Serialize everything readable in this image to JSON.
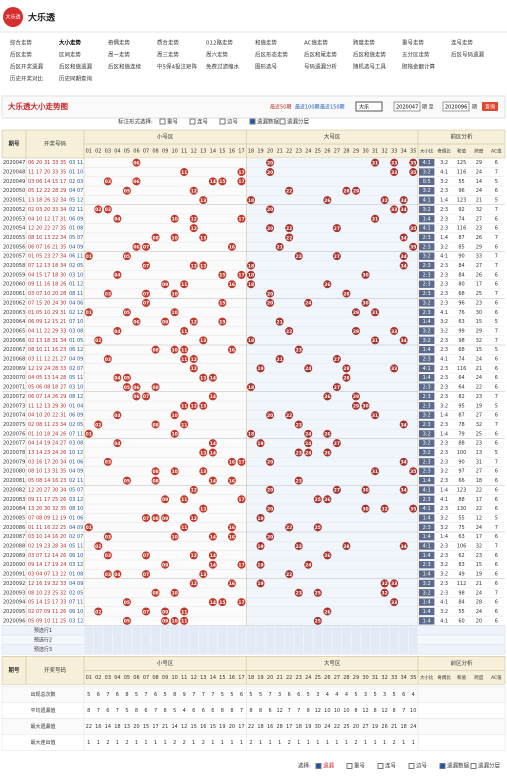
{
  "header": {
    "logo": "大乐透",
    "title": "大乐透"
  },
  "nav": [
    [
      "综合走势",
      "大小走势",
      "奇偶走势",
      "质合走势",
      "012路走势",
      "和值走势",
      "AC值走势",
      "跨度走势",
      "重号走势",
      "连号走势"
    ],
    [
      "后区走势",
      "区间走势",
      "周一走势",
      "周三走势",
      "周六走势",
      "后区形态走势",
      "后区和尾走势",
      "后区和值走势",
      "五分区走势",
      "后区号码遗漏"
    ],
    [
      "后区开奖遗漏",
      "后区和值遗漏",
      "后区和值连续",
      "中5保4投注矩阵",
      "免费过滤缩水",
      "图形选号",
      "号码遗漏分析",
      "随机选号工具",
      "胆拖金额计算"
    ],
    [
      "历史开奖对比",
      "历史同期查询"
    ]
  ],
  "panel": {
    "title": "大乐透大小走势图",
    "quick": [
      "最近50期",
      "最近100期",
      "最近150期"
    ],
    "select": "大乐",
    "from": "2020047",
    "from_unit": "期 至",
    "to": "2020096",
    "to_unit": "期",
    "button": "查询",
    "mark_label": "标注形式选择:",
    "marks": [
      "重号",
      "连号",
      "边号",
      "遗漏数据",
      "遗漏分层"
    ]
  },
  "table": {
    "headers": {
      "issue": "期号",
      "draw": "开奖号码",
      "zones": [
        "小号区",
        "大号区"
      ],
      "numbers": [
        "01",
        "02",
        "03",
        "04",
        "05",
        "06",
        "07",
        "08",
        "09",
        "10",
        "11",
        "12",
        "13",
        "14",
        "15",
        "16",
        "17",
        "18",
        "19",
        "20",
        "21",
        "22",
        "23",
        "24",
        "25",
        "26",
        "27",
        "28",
        "29",
        "30",
        "31",
        "32",
        "33",
        "34",
        "35"
      ],
      "analysis": "前区分析",
      "analysis_cols": [
        "大小比",
        "奇偶比",
        "和值",
        "跨度",
        "AC值"
      ]
    },
    "rows": [
      {
        "issue": "2020047",
        "front": [
          "06",
          "20",
          "31",
          "33",
          "35"
        ],
        "back": [
          "03",
          "11"
        ],
        "stats": [
          "4:1",
          "3:2",
          125,
          29,
          6
        ]
      },
      {
        "issue": "2020048",
        "front": [
          "11",
          "17",
          "20",
          "33",
          "35"
        ],
        "back": [
          "01",
          "10"
        ],
        "stats": [
          "3:2",
          "4:1",
          116,
          24,
          7
        ]
      },
      {
        "issue": "2020049",
        "front": [
          "03",
          "06",
          "14",
          "15",
          "17"
        ],
        "back": [
          "02",
          "03"
        ],
        "stats": [
          "0:5",
          "3:2",
          55,
          14,
          5
        ]
      },
      {
        "issue": "2020050",
        "front": [
          "05",
          "12",
          "22",
          "28",
          "29"
        ],
        "back": [
          "04",
          "07"
        ],
        "stats": [
          "3:2",
          "2:3",
          96,
          24,
          6
        ]
      },
      {
        "issue": "2020051",
        "front": [
          "13",
          "18",
          "26",
          "32",
          "34"
        ],
        "back": [
          "05",
          "12"
        ],
        "stats": [
          "4:1",
          "1:4",
          123,
          21,
          5
        ]
      },
      {
        "issue": "2020052",
        "front": [
          "02",
          "03",
          "20",
          "33",
          "34"
        ],
        "back": [
          "02",
          "11"
        ],
        "stats": [
          "3:2",
          "2:3",
          92,
          32,
          7
        ]
      },
      {
        "issue": "2020053",
        "front": [
          "04",
          "10",
          "12",
          "17",
          "31"
        ],
        "back": [
          "06",
          "09"
        ],
        "stats": [
          "1:4",
          "2:3",
          74,
          27,
          6
        ]
      },
      {
        "issue": "2020054",
        "front": [
          "12",
          "20",
          "22",
          "27",
          "35"
        ],
        "back": [
          "01",
          "08"
        ],
        "stats": [
          "4:1",
          "2:3",
          116,
          23,
          6
        ]
      },
      {
        "issue": "2020055",
        "front": [
          "08",
          "10",
          "13",
          "22",
          "34"
        ],
        "back": [
          "05",
          "07"
        ],
        "stats": [
          "2:3",
          "1:4",
          87,
          26,
          7
        ]
      },
      {
        "issue": "2020056",
        "front": [
          "06",
          "07",
          "16",
          "21",
          "35"
        ],
        "back": [
          "04",
          "09"
        ],
        "stats": [
          "2:3",
          "3:2",
          85,
          29,
          6
        ]
      },
      {
        "issue": "2020057",
        "front": [
          "01",
          "05",
          "23",
          "27",
          "34"
        ],
        "back": [
          "06",
          "11"
        ],
        "stats": [
          "3:2",
          "4:1",
          90,
          33,
          7
        ]
      },
      {
        "issue": "2020058",
        "front": [
          "07",
          "12",
          "13",
          "18",
          "34"
        ],
        "back": [
          "02",
          "05"
        ],
        "stats": [
          "2:3",
          "2:3",
          84,
          27,
          7
        ]
      },
      {
        "issue": "2020059",
        "front": [
          "04",
          "15",
          "17",
          "18",
          "30"
        ],
        "back": [
          "03",
          "10"
        ],
        "stats": [
          "2:3",
          "2:3",
          84,
          26,
          6
        ]
      },
      {
        "issue": "2020060",
        "front": [
          "09",
          "11",
          "16",
          "18",
          "26"
        ],
        "back": [
          "01",
          "12"
        ],
        "stats": [
          "2:3",
          "2:3",
          80,
          17,
          6
        ]
      },
      {
        "issue": "2020061",
        "front": [
          "03",
          "07",
          "10",
          "20",
          "28"
        ],
        "back": [
          "08",
          "11"
        ],
        "stats": [
          "2:3",
          "2:3",
          68,
          25,
          7
        ]
      },
      {
        "issue": "2020062",
        "front": [
          "07",
          "15",
          "20",
          "24",
          "30"
        ],
        "back": [
          "04",
          "06"
        ],
        "stats": [
          "3:2",
          "2:3",
          96,
          23,
          6
        ]
      },
      {
        "issue": "2020063",
        "front": [
          "01",
          "05",
          "10",
          "29",
          "31"
        ],
        "back": [
          "02",
          "12"
        ],
        "stats": [
          "2:3",
          "4:1",
          76,
          30,
          6
        ]
      },
      {
        "issue": "2020064",
        "front": [
          "06",
          "09",
          "12",
          "15",
          "21"
        ],
        "back": [
          "07",
          "10"
        ],
        "stats": [
          "1:4",
          "3:2",
          63,
          15,
          5
        ]
      },
      {
        "issue": "2020065",
        "front": [
          "04",
          "11",
          "22",
          "29",
          "33"
        ],
        "back": [
          "03",
          "08"
        ],
        "stats": [
          "3:2",
          "3:2",
          99,
          29,
          7
        ]
      },
      {
        "issue": "2020066",
        "front": [
          "02",
          "13",
          "18",
          "31",
          "34"
        ],
        "back": [
          "01",
          "05"
        ],
        "stats": [
          "3:2",
          "2:3",
          98,
          32,
          7
        ]
      },
      {
        "issue": "2020067",
        "front": [
          "08",
          "10",
          "11",
          "16",
          "23"
        ],
        "back": [
          "06",
          "12"
        ],
        "stats": [
          "1:4",
          "2:3",
          68,
          15,
          5
        ]
      },
      {
        "issue": "2020068",
        "front": [
          "03",
          "11",
          "12",
          "21",
          "27"
        ],
        "back": [
          "04",
          "09"
        ],
        "stats": [
          "2:3",
          "4:1",
          74,
          24,
          6
        ]
      },
      {
        "issue": "2020069",
        "front": [
          "12",
          "19",
          "24",
          "28",
          "33"
        ],
        "back": [
          "02",
          "07"
        ],
        "stats": [
          "4:1",
          "2:3",
          116,
          21,
          6
        ]
      },
      {
        "issue": "2020070",
        "front": [
          "04",
          "05",
          "13",
          "14",
          "28"
        ],
        "back": [
          "05",
          "11"
        ],
        "stats": [
          "1:4",
          "2:3",
          64,
          24,
          6
        ]
      },
      {
        "issue": "2020071",
        "front": [
          "05",
          "06",
          "08",
          "18",
          "27"
        ],
        "back": [
          "03",
          "10"
        ],
        "stats": [
          "2:3",
          "2:3",
          64,
          22,
          6
        ]
      },
      {
        "issue": "2020072",
        "front": [
          "06",
          "07",
          "14",
          "26",
          "29"
        ],
        "back": [
          "08",
          "12"
        ],
        "stats": [
          "2:3",
          "2:3",
          82,
          23,
          7
        ]
      },
      {
        "issue": "2020073",
        "front": [
          "11",
          "12",
          "13",
          "29",
          "30"
        ],
        "back": [
          "01",
          "04"
        ],
        "stats": [
          "2:3",
          "3:2",
          95,
          19,
          5
        ]
      },
      {
        "issue": "2020074",
        "front": [
          "04",
          "10",
          "20",
          "22",
          "31"
        ],
        "back": [
          "06",
          "09"
        ],
        "stats": [
          "3:2",
          "1:4",
          87,
          27,
          6
        ]
      },
      {
        "issue": "2020075",
        "front": [
          "02",
          "08",
          "11",
          "23",
          "34"
        ],
        "back": [
          "02",
          "05"
        ],
        "stats": [
          "2:3",
          "2:3",
          78,
          32,
          7
        ]
      },
      {
        "issue": "2020076",
        "front": [
          "01",
          "10",
          "18",
          "24",
          "26"
        ],
        "back": [
          "07",
          "11"
        ],
        "stats": [
          "3:2",
          "1:4",
          79,
          25,
          6
        ]
      },
      {
        "issue": "2020077",
        "front": [
          "04",
          "14",
          "19",
          "24",
          "27"
        ],
        "back": [
          "03",
          "08"
        ],
        "stats": [
          "3:2",
          "2:3",
          88,
          23,
          6
        ]
      },
      {
        "issue": "2020078",
        "front": [
          "13",
          "14",
          "23",
          "24",
          "26"
        ],
        "back": [
          "10",
          "12"
        ],
        "stats": [
          "3:2",
          "2:3",
          100,
          13,
          5
        ]
      },
      {
        "issue": "2020079",
        "front": [
          "03",
          "16",
          "17",
          "20",
          "34"
        ],
        "back": [
          "01",
          "06"
        ],
        "stats": [
          "2:3",
          "2:3",
          90,
          31,
          7
        ]
      },
      {
        "issue": "2020080",
        "front": [
          "08",
          "10",
          "13",
          "31",
          "35"
        ],
        "back": [
          "04",
          "09"
        ],
        "stats": [
          "2:3",
          "3:2",
          97,
          27,
          6
        ]
      },
      {
        "issue": "2020081",
        "front": [
          "05",
          "08",
          "14",
          "16",
          "23"
        ],
        "back": [
          "02",
          "11"
        ],
        "stats": [
          "1:4",
          "2:3",
          66,
          18,
          6
        ]
      },
      {
        "issue": "2020082",
        "front": [
          "12",
          "20",
          "27",
          "30",
          "34"
        ],
        "back": [
          "05",
          "07"
        ],
        "stats": [
          "4:1",
          "1:4",
          123,
          22,
          6
        ]
      },
      {
        "issue": "2020083",
        "front": [
          "09",
          "11",
          "17",
          "25",
          "26"
        ],
        "back": [
          "03",
          "12"
        ],
        "stats": [
          "2:3",
          "4:1",
          88,
          17,
          6
        ]
      },
      {
        "issue": "2020084",
        "front": [
          "13",
          "20",
          "30",
          "32",
          "35"
        ],
        "back": [
          "08",
          "10"
        ],
        "stats": [
          "4:1",
          "2:3",
          130,
          22,
          6
        ]
      },
      {
        "issue": "2020085",
        "front": [
          "07",
          "08",
          "09",
          "12",
          "19"
        ],
        "back": [
          "01",
          "06"
        ],
        "stats": [
          "1:4",
          "3:2",
          55,
          12,
          5
        ]
      },
      {
        "issue": "2020086",
        "front": [
          "01",
          "11",
          "16",
          "22",
          "25"
        ],
        "back": [
          "04",
          "09"
        ],
        "stats": [
          "2:3",
          "3:2",
          75,
          24,
          7
        ]
      },
      {
        "issue": "2020087",
        "front": [
          "03",
          "10",
          "14",
          "16",
          "20"
        ],
        "back": [
          "02",
          "07"
        ],
        "stats": [
          "1:4",
          "1:4",
          63,
          17,
          6
        ]
      },
      {
        "issue": "2020088",
        "front": [
          "02",
          "19",
          "23",
          "28",
          "34"
        ],
        "back": [
          "05",
          "11"
        ],
        "stats": [
          "4:1",
          "2:3",
          106,
          32,
          7
        ]
      },
      {
        "issue": "2020089",
        "front": [
          "03",
          "07",
          "12",
          "14",
          "26"
        ],
        "back": [
          "06",
          "10"
        ],
        "stats": [
          "1:4",
          "2:3",
          62,
          23,
          6
        ]
      },
      {
        "issue": "2020090",
        "front": [
          "09",
          "14",
          "17",
          "19",
          "24"
        ],
        "back": [
          "03",
          "12"
        ],
        "stats": [
          "2:3",
          "3:2",
          83,
          15,
          6
        ]
      },
      {
        "issue": "2020091",
        "front": [
          "03",
          "04",
          "07",
          "13",
          "22"
        ],
        "back": [
          "01",
          "08"
        ],
        "stats": [
          "1:4",
          "3:2",
          49,
          19,
          6
        ]
      },
      {
        "issue": "2020092",
        "front": [
          "12",
          "16",
          "19",
          "32",
          "33"
        ],
        "back": [
          "04",
          "09"
        ],
        "stats": [
          "3:2",
          "2:3",
          112,
          21,
          6
        ]
      },
      {
        "issue": "2020093",
        "front": [
          "08",
          "10",
          "23",
          "25",
          "32"
        ],
        "back": [
          "02",
          "05"
        ],
        "stats": [
          "3:2",
          "2:3",
          98,
          24,
          7
        ]
      },
      {
        "issue": "2020094",
        "front": [
          "05",
          "14",
          "15",
          "17",
          "33"
        ],
        "back": [
          "07",
          "11"
        ],
        "stats": [
          "1:4",
          "4:1",
          84,
          28,
          6
        ]
      },
      {
        "issue": "2020095",
        "front": [
          "02",
          "07",
          "09",
          "11",
          "26"
        ],
        "back": [
          "06",
          "10"
        ],
        "stats": [
          "1:4",
          "3:2",
          55,
          24,
          6
        ]
      },
      {
        "issue": "2020096",
        "front": [
          "05",
          "09",
          "10",
          "11",
          "25"
        ],
        "back": [
          "03",
          "12"
        ],
        "stats": [
          "1:4",
          "4:1",
          60,
          20,
          6
        ]
      }
    ],
    "preset_rows": [
      "预选行1",
      "预选行2",
      "预选行3"
    ],
    "summary": [
      {
        "label": "出现总次数",
        "values": [
          5,
          6,
          7,
          6,
          8,
          5,
          7,
          6,
          5,
          8,
          9,
          7,
          7,
          7,
          5,
          5,
          6,
          5,
          5,
          7,
          3,
          6,
          6,
          5,
          3,
          4,
          4,
          4,
          5,
          3,
          5,
          3,
          5,
          6,
          4
        ]
      },
      {
        "label": "平均遗漏值",
        "values": [
          8,
          7,
          6,
          7,
          5,
          8,
          6,
          7,
          8,
          5,
          4,
          6,
          6,
          6,
          8,
          8,
          7,
          8,
          8,
          6,
          12,
          7,
          7,
          8,
          12,
          10,
          10,
          10,
          8,
          12,
          8,
          12,
          8,
          7,
          10
        ]
      },
      {
        "label": "最大遗漏值",
        "values": [
          22,
          16,
          14,
          18,
          13,
          20,
          15,
          17,
          21,
          14,
          12,
          15,
          16,
          15,
          19,
          20,
          17,
          22,
          18,
          16,
          28,
          17,
          18,
          19,
          30,
          24,
          22,
          25,
          20,
          27,
          19,
          26,
          21,
          18,
          24
        ]
      },
      {
        "label": "最大连出值",
        "values": [
          1,
          1,
          2,
          1,
          2,
          1,
          1,
          1,
          1,
          2,
          2,
          1,
          2,
          1,
          1,
          1,
          1,
          2,
          1,
          1,
          1,
          2,
          1,
          1,
          1,
          1,
          1,
          1,
          2,
          1,
          1,
          1,
          2,
          1,
          1
        ]
      }
    ]
  },
  "footer": {
    "label": "选择:",
    "options": [
      "遗漏",
      "重号",
      "连号",
      "边号",
      "遗漏数据",
      "遗漏分层"
    ]
  }
}
